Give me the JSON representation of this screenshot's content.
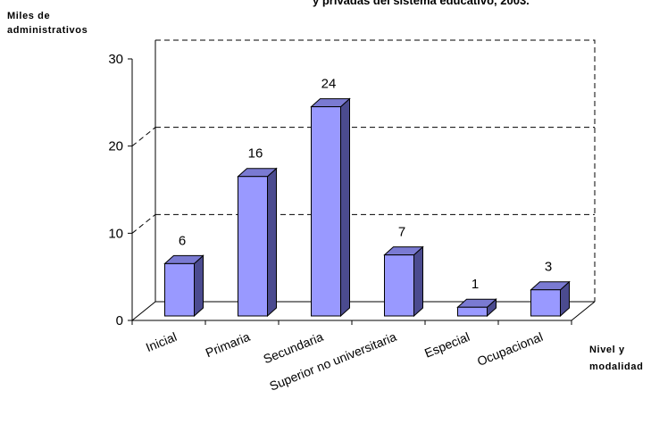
{
  "chart_data": {
    "type": "bar",
    "title_fragment": "y privadas del sistema educativo, 2003.",
    "ylabel_lines": [
      "Miles de",
      "administrativos"
    ],
    "xlabel_lines": [
      "Nivel y",
      "modalidad"
    ],
    "categories": [
      "Inicial",
      "Primaria",
      "Secundaria",
      "Superior no universitaria",
      "Especial",
      "Ocupacional"
    ],
    "values": [
      6,
      16,
      24,
      7,
      1,
      3
    ],
    "data_labels": [
      "6",
      "16",
      "24",
      "7",
      "1",
      "3"
    ],
    "ylim": [
      0,
      30
    ],
    "yticks": [
      "0",
      "10",
      "20",
      "30"
    ],
    "grid": "dashed horizontal at 10 and 20",
    "legend": "none",
    "style": "3d-column",
    "colors": {
      "bar_front": "#9999ff",
      "bar_side": "#4b4b8f",
      "bar_top": "#7a7ad2",
      "outline": "#000000"
    }
  }
}
